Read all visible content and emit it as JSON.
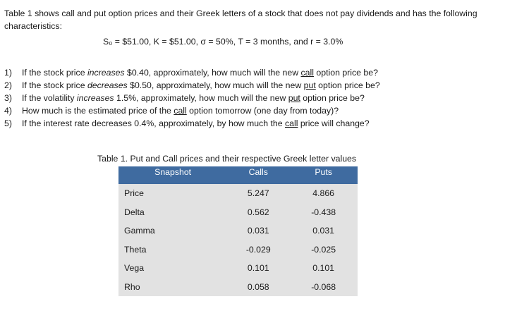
{
  "intro": "Table 1 shows call and put option prices and their Greek letters of a stock that does not pay dividends and has the following characteristics:",
  "params": "S₀ = $51.00, K = $51.00, σ = 50%, T = 3 months, and r = 3.0%",
  "questions": [
    {
      "num": "1)",
      "pre": "If the stock price ",
      "em": "increases",
      "mid": " $0.40, approximately, how much will the new ",
      "ul": "call",
      "post": " option price be?"
    },
    {
      "num": "2)",
      "pre": "If the stock price ",
      "em": "decreases",
      "mid": " $0.50, approximately, how much will the new ",
      "ul": "put",
      "post": " option price be?"
    },
    {
      "num": "3)",
      "pre": "If the volatility ",
      "em": "increases",
      "mid": " 1.5%, approximately, how much will the new ",
      "ul": "put",
      "post": " option price be?"
    },
    {
      "num": "4)",
      "pre": "How much is the estimated price of the ",
      "em": "",
      "mid": "",
      "ul": "call",
      "post": " option tomorrow (one day from today)?"
    },
    {
      "num": "5)",
      "pre": "If the interest rate decreases 0.4%, approximately, by how much the ",
      "em": "",
      "mid": "",
      "ul": "call",
      "post": " price will change?"
    }
  ],
  "table": {
    "caption": "Table 1. Put and Call prices and their respective Greek letter values",
    "headers": [
      "Snapshot",
      "Calls",
      "Puts"
    ],
    "rows": [
      [
        "Price",
        "5.247",
        "4.866"
      ],
      [
        "Delta",
        "0.562",
        "-0.438"
      ],
      [
        "Gamma",
        "0.031",
        "0.031"
      ],
      [
        "Theta",
        "-0.029",
        "-0.025"
      ],
      [
        "Vega",
        "0.101",
        "0.101"
      ],
      [
        "Rho",
        "0.058",
        "-0.068"
      ]
    ]
  }
}
